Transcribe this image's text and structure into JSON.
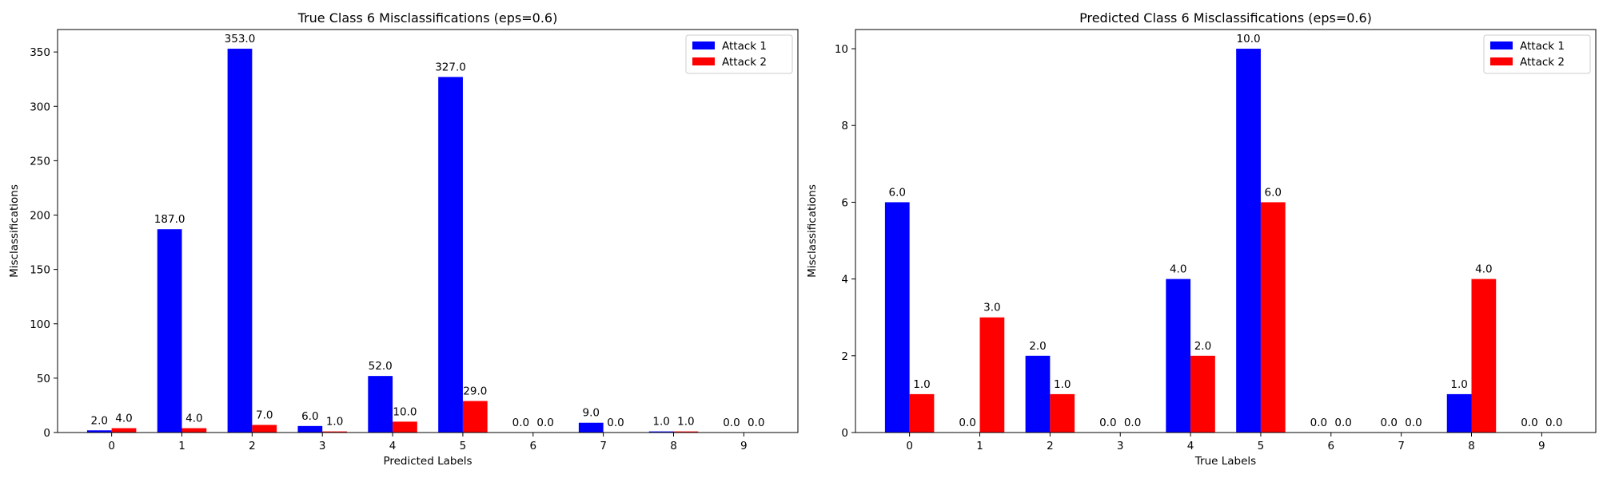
{
  "chart_data": [
    {
      "type": "bar",
      "title": "True Class 6 Misclassifications (eps=0.6)",
      "xlabel": "Predicted Labels",
      "ylabel": "Misclassifications",
      "categories": [
        "0",
        "1",
        "2",
        "3",
        "4",
        "5",
        "6",
        "7",
        "8",
        "9"
      ],
      "series": [
        {
          "name": "Attack 1",
          "color": "#0000ff",
          "values": [
            2.0,
            187.0,
            353.0,
            6.0,
            52.0,
            327.0,
            0.0,
            9.0,
            1.0,
            0.0
          ]
        },
        {
          "name": "Attack 2",
          "color": "#ff0000",
          "values": [
            4.0,
            4.0,
            7.0,
            1.0,
            10.0,
            29.0,
            0.0,
            0.0,
            1.0,
            0.0
          ]
        }
      ],
      "ylim": [
        0,
        370.65
      ],
      "yticks": [
        0,
        50,
        100,
        150,
        200,
        250,
        300,
        350
      ],
      "legend": "top-right",
      "grid": false
    },
    {
      "type": "bar",
      "title": "Predicted Class 6 Misclassifications (eps=0.6)",
      "xlabel": "True Labels",
      "ylabel": "Misclassifications",
      "categories": [
        "0",
        "1",
        "2",
        "3",
        "4",
        "5",
        "6",
        "7",
        "8",
        "9"
      ],
      "series": [
        {
          "name": "Attack 1",
          "color": "#0000ff",
          "values": [
            6.0,
            0.0,
            2.0,
            0.0,
            4.0,
            10.0,
            0.0,
            0.0,
            1.0,
            0.0
          ]
        },
        {
          "name": "Attack 2",
          "color": "#ff0000",
          "values": [
            1.0,
            3.0,
            1.0,
            0.0,
            2.0,
            6.0,
            0.0,
            0.0,
            4.0,
            0.0
          ]
        }
      ],
      "ylim": [
        0,
        10.5
      ],
      "yticks": [
        0,
        2,
        4,
        6,
        8,
        10
      ],
      "legend": "top-right",
      "grid": false
    }
  ]
}
